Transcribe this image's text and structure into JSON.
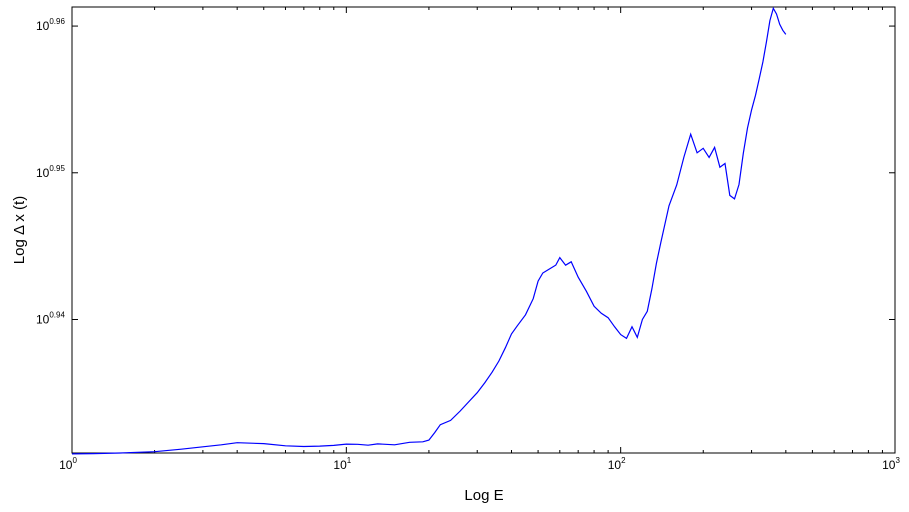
{
  "chart_data": {
    "type": "line",
    "title": "",
    "xlabel": "Log E",
    "ylabel": "Log Δ x (t)",
    "x_scale": "log",
    "y_scale": "log",
    "xlim": [
      1,
      1000
    ],
    "ylim_exponent": [
      0.9309,
      0.9613
    ],
    "grid": false,
    "x_ticks": [
      {
        "base": "10",
        "exp": "0",
        "value": 1
      },
      {
        "base": "10",
        "exp": "1",
        "value": 10
      },
      {
        "base": "10",
        "exp": "2",
        "value": 100
      },
      {
        "base": "10",
        "exp": "3",
        "value": 1000
      }
    ],
    "y_ticks": [
      {
        "base": "10",
        "exp": "0.94",
        "value": 0.94
      },
      {
        "base": "10",
        "exp": "0.95",
        "value": 0.95
      },
      {
        "base": "10",
        "exp": "0.96",
        "value": 0.96
      }
    ],
    "series": [
      {
        "color": "#0000ff",
        "x": [
          1.0,
          1.2,
          1.5,
          2.0,
          2.5,
          3.0,
          3.5,
          4.0,
          4.5,
          5.0,
          6.0,
          7.0,
          8.0,
          9.0,
          10.0,
          11.0,
          12.0,
          13.0,
          15.0,
          17.0,
          19.0,
          20.0,
          21.0,
          22.0,
          24.0,
          26.0,
          28.0,
          30.0,
          32.0,
          34.0,
          36.0,
          38.0,
          40.0,
          42.0,
          45.0,
          48.0,
          50.0,
          52.0,
          55.0,
          58.0,
          60.0,
          63.0,
          66.0,
          70.0,
          75.0,
          80.0,
          85.0,
          90.0,
          95.0,
          100.0,
          105.0,
          110.0,
          115.0,
          120.0,
          125.0,
          130.0,
          135.0,
          140.0,
          150.0,
          160.0,
          170.0,
          180.0,
          190.0,
          200.0,
          210.0,
          220.0,
          230.0,
          240.0,
          250.0,
          260.0,
          270.0,
          280.0,
          290.0,
          300.0,
          310.0,
          320.0,
          330.0,
          340.0,
          350.0,
          360.0,
          370.0,
          380.0,
          390.0,
          400.0
        ],
        "y_exponent": [
          0.93084,
          0.93086,
          0.9309,
          0.93099,
          0.93116,
          0.93132,
          0.93146,
          0.9316,
          0.93157,
          0.93154,
          0.93139,
          0.93134,
          0.93137,
          0.93142,
          0.93151,
          0.93149,
          0.93143,
          0.93152,
          0.93146,
          0.93163,
          0.93166,
          0.93178,
          0.93229,
          0.93283,
          0.93312,
          0.93376,
          0.93441,
          0.93501,
          0.9357,
          0.93641,
          0.93717,
          0.93808,
          0.93902,
          0.93957,
          0.94032,
          0.94142,
          0.94262,
          0.94317,
          0.94344,
          0.94371,
          0.94422,
          0.9437,
          0.94393,
          0.94288,
          0.94192,
          0.9409,
          0.94042,
          0.94012,
          0.9395,
          0.93897,
          0.93871,
          0.93951,
          0.93878,
          0.94,
          0.94056,
          0.94209,
          0.94382,
          0.94524,
          0.94775,
          0.94917,
          0.95107,
          0.95263,
          0.95136,
          0.95167,
          0.95105,
          0.95173,
          0.95038,
          0.95063,
          0.94846,
          0.94822,
          0.9492,
          0.95132,
          0.95305,
          0.95429,
          0.95528,
          0.9564,
          0.95756,
          0.95895,
          0.96037,
          0.96121,
          0.96082,
          0.96012,
          0.95971,
          0.95943
        ]
      }
    ]
  }
}
